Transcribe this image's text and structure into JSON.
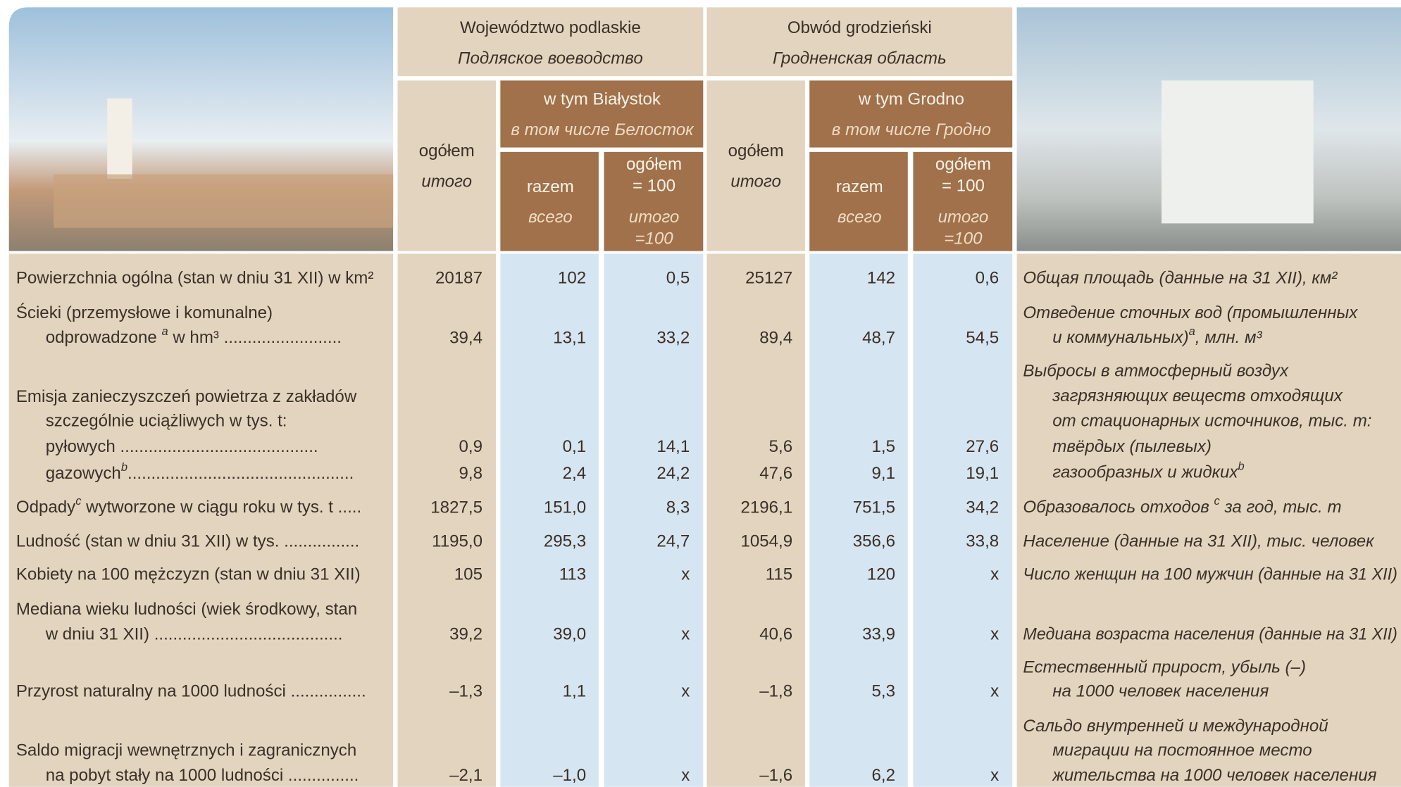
{
  "header": {
    "groups": [
      {
        "pl": "Województwo podlaskie",
        "ru": "Подляское воеводство",
        "city_pl": "w tym Białystok",
        "city_ru": "в том числе Белосток"
      },
      {
        "pl": "Obwód grodzieński",
        "ru": "Гродненская область",
        "city_pl": "w tym Grodno",
        "city_ru": "в том числе Гродно"
      }
    ],
    "total": {
      "pl": "ogółem",
      "ru": "итого"
    },
    "sum": {
      "pl": "razem",
      "ru": "всего"
    },
    "share": {
      "pl": [
        "ogółem",
        "= 100"
      ],
      "ru": [
        "итого",
        "=100"
      ]
    }
  },
  "rows": [
    {
      "pl": [
        "Powierzchnia ogólna (stan w dniu 31 XII) w km²"
      ],
      "values": [
        [
          "20187",
          "102",
          "0,5",
          "25127",
          "142",
          "0,6"
        ]
      ],
      "ru": [
        "Общая площадь (данные на 31 XII), км²"
      ]
    },
    {
      "pl": [
        "Ścieki (przemysłowe i komunalne)",
        [
          "odprowadzone ",
          "a",
          " w hm³ ........................."
        ]
      ],
      "values": [
        [
          "39,4",
          "13,1",
          "33,2",
          "89,4",
          "48,7",
          "54,5"
        ]
      ],
      "ru": [
        "Отведение сточных вод (промышленных",
        [
          "и коммунальных)",
          "a",
          ", млн. м³"
        ]
      ]
    },
    {
      "pl": [
        "Emisja zanieczyszczeń powietrza z zakładów",
        "szczególnie uciążliwych w tys. t:",
        "pyłowych ..........................................",
        [
          "gazowych",
          "b",
          "................................................"
        ]
      ],
      "values": [
        [
          "0,9",
          "0,1",
          "14,1",
          "5,6",
          "1,5",
          "27,6"
        ],
        [
          "9,8",
          "2,4",
          "24,2",
          "47,6",
          "9,1",
          "19,1"
        ]
      ],
      "ru": [
        "Выбросы в атмосферный воздух",
        "загрязняющих веществ отходящих",
        "от стационарных источников, тыс. т:",
        "твёрдых (пылевых)",
        [
          "газообразных и жидких",
          "b"
        ]
      ]
    },
    {
      "pl": [
        [
          "Odpady",
          "c",
          " wytworzone w ciągu roku w tys. t ....."
        ]
      ],
      "values": [
        [
          "1827,5",
          "151,0",
          "8,3",
          "2196,1",
          "751,5",
          "34,2"
        ]
      ],
      "ru": [
        [
          "Образовалось отходов ",
          "c",
          " за год, тыс. т"
        ]
      ]
    },
    {
      "pl": [
        "Ludność (stan w dniu 31 XII) w tys.  ................"
      ],
      "values": [
        [
          "1195,0",
          "295,3",
          "24,7",
          "1054,9",
          "356,6",
          "33,8"
        ]
      ],
      "ru": [
        "Население (данные на 31 XII), тыс. человек"
      ]
    },
    {
      "pl": [
        "Kobiety na 100 mężczyzn (stan w dniu 31 XII)"
      ],
      "values": [
        [
          "105",
          "113",
          "x",
          "115",
          "120",
          "x"
        ]
      ],
      "ru": [
        "Число женщин на 100 мужчин (данные на 31 XII)"
      ]
    },
    {
      "pl": [
        "Mediana wieku ludności (wiek środkowy, stan",
        "w dniu 31 XII) ........................................"
      ],
      "values": [
        [
          "39,2",
          "39,0",
          "x",
          "40,6",
          "33,9",
          "x"
        ]
      ],
      "ru": [
        "Медиана возраста населения (данные на 31 XII)"
      ]
    },
    {
      "pl": [
        "Przyrost naturalny na 1000 ludności  ................"
      ],
      "values": [
        [
          "–1,3",
          "1,1",
          "x",
          "–1,8",
          "5,3",
          "x"
        ]
      ],
      "ru": [
        "Естественный прирост, убыль (–)",
        "на 1000 человек населения"
      ]
    },
    {
      "pl": [
        "Saldo migracji wewnętrznych i zagranicznych",
        "na pobyt stały na 1000 ludności  ..............."
      ],
      "values": [
        [
          "–2,1",
          "–1,0",
          "x",
          "–1,6",
          "6,2",
          "x"
        ]
      ],
      "ru": [
        "Сальдо внутренней и международной",
        "миграции на постоянное место",
        "жительства на 1000 человек населения"
      ]
    }
  ]
}
